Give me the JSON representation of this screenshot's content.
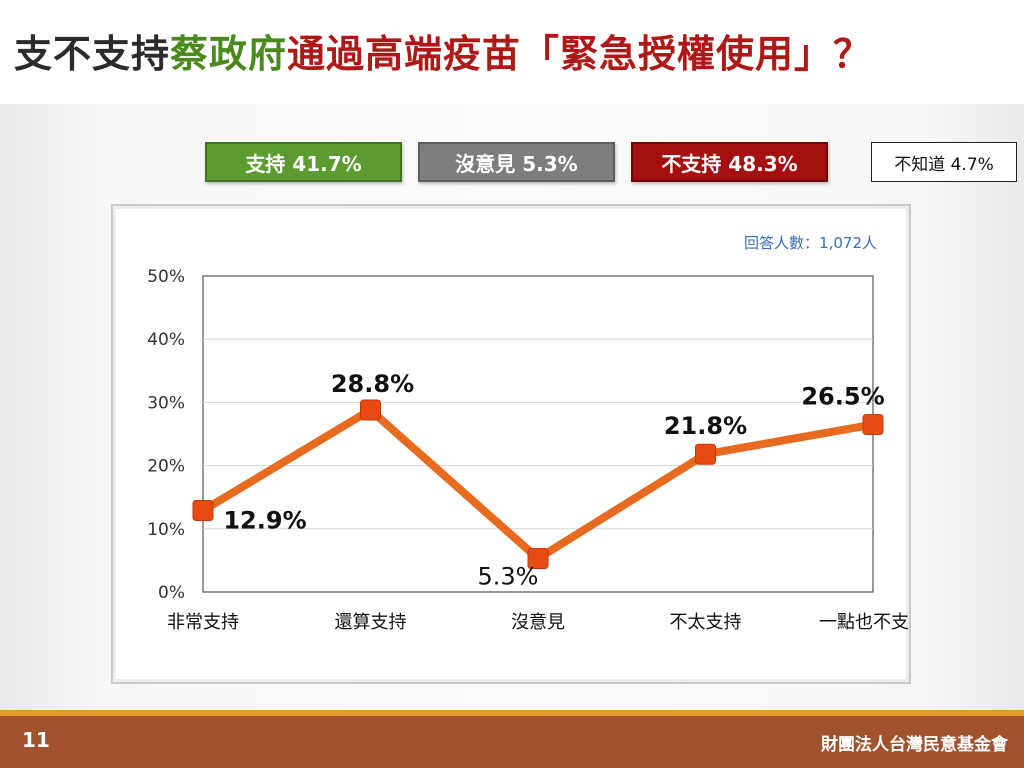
{
  "title": {
    "part1": "支不支持",
    "part2": "蔡政府",
    "part3": "通過高端疫苗「緊急授權使用」？"
  },
  "summary": {
    "support": "支持 41.7%",
    "neutral": "沒意見 5.3%",
    "oppose": "不支持 48.3%",
    "unknown": "不知道 4.7%"
  },
  "colors": {
    "support": "#5b9b2f",
    "neutral": "#7d7d7d",
    "oppose": "#a50f0f",
    "line": "#e86a1e",
    "marker": "#e84a12",
    "footer": "#a0522d",
    "accent_line": "#e39a2a"
  },
  "chart_data": {
    "type": "line",
    "categories": [
      "非常支持",
      "還算支持",
      "沒意見",
      "不太支持",
      "一點也不支持"
    ],
    "values": [
      12.9,
      28.8,
      5.3,
      21.8,
      26.5
    ],
    "data_labels": [
      "12.9%",
      "28.8%",
      "5.3%",
      "21.8%",
      "26.5%"
    ],
    "yticks": [
      "0%",
      "10%",
      "20%",
      "30%",
      "40%",
      "50%"
    ],
    "ylim": [
      0,
      50
    ],
    "grid": true,
    "annotation": "回答人數：1,072人"
  },
  "footer": {
    "page_number": "11",
    "organization": "財團法人台灣民意基金會"
  }
}
